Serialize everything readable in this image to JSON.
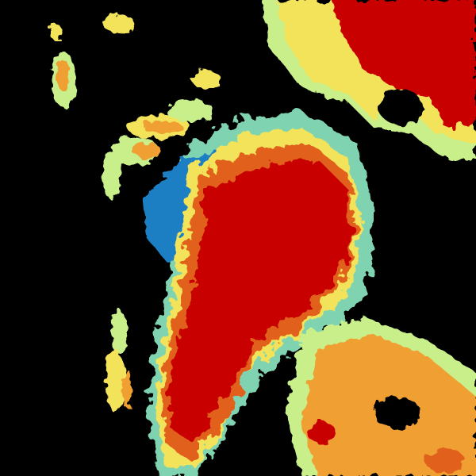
{
  "radar": {
    "background": "#000000",
    "palette": {
      "blue": "#1a7fc4",
      "cyan": "#7fd3b0",
      "light_green": "#c8ef8a",
      "yellow": "#f2e35a",
      "orange": "#f0a030",
      "dark_orange": "#e0601a",
      "red": "#c80000"
    }
  }
}
